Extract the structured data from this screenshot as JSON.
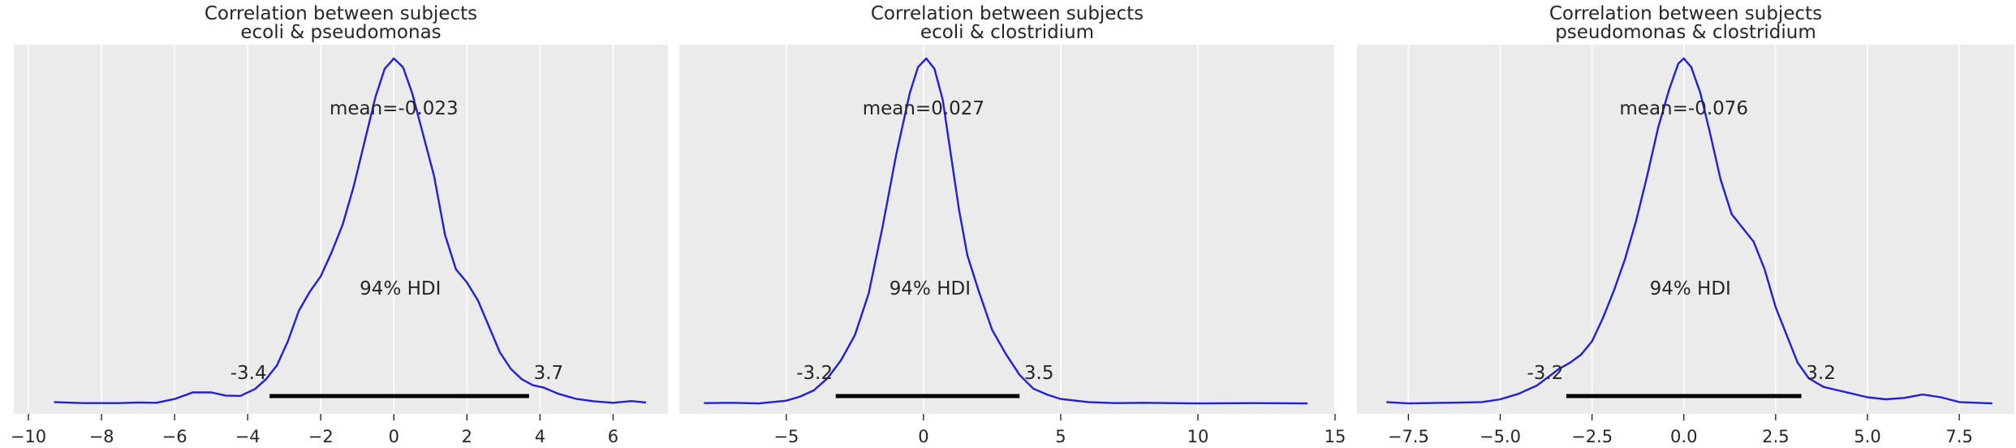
{
  "chart_data": [
    {
      "type": "line",
      "title": [
        "Correlation between subjects",
        "ecoli & pseudomonas"
      ],
      "xlim": [
        -10.4,
        7.5
      ],
      "xticks": [
        -10,
        -8,
        -6,
        -4,
        -2,
        0,
        2,
        4,
        6
      ],
      "xtick_labels": [
        "−10",
        "−8",
        "−6",
        "−4",
        "−2",
        "0",
        "2",
        "4",
        "6"
      ],
      "mean_label": "mean=-0.023",
      "hdi_label": "94% HDI",
      "hdi": [
        -3.4,
        3.7
      ],
      "hdi_low_label": "-3.4",
      "hdi_high_label": "3.7",
      "x": [
        -9.3,
        -8.5,
        -7.5,
        -7.0,
        -6.5,
        -6.0,
        -5.5,
        -5.0,
        -4.6,
        -4.2,
        -3.8,
        -3.5,
        -3.2,
        -2.9,
        -2.6,
        -2.3,
        -2.0,
        -1.7,
        -1.4,
        -1.1,
        -0.8,
        -0.5,
        -0.25,
        0.0,
        0.25,
        0.5,
        0.8,
        1.1,
        1.4,
        1.7,
        2.0,
        2.3,
        2.6,
        2.9,
        3.2,
        3.5,
        3.8,
        4.1,
        4.5,
        5.0,
        5.5,
        6.0,
        6.5,
        6.9
      ],
      "values": [
        0.006,
        0.003,
        0.003,
        0.005,
        0.004,
        0.015,
        0.034,
        0.034,
        0.025,
        0.024,
        0.044,
        0.072,
        0.112,
        0.182,
        0.27,
        0.325,
        0.37,
        0.44,
        0.52,
        0.63,
        0.76,
        0.89,
        0.97,
        1.0,
        0.975,
        0.9,
        0.78,
        0.66,
        0.49,
        0.39,
        0.352,
        0.3,
        0.225,
        0.15,
        0.102,
        0.072,
        0.055,
        0.048,
        0.03,
        0.015,
        0.008,
        0.004,
        0.009,
        0.005
      ]
    },
    {
      "type": "line",
      "title": [
        "Correlation between subjects",
        "ecoli & clostridium"
      ],
      "xlim": [
        -8.9,
        15.0
      ],
      "xticks": [
        -5,
        0,
        5,
        10,
        15
      ],
      "xtick_labels": [
        "−5",
        "0",
        "5",
        "10",
        "15"
      ],
      "mean_label": "mean=0.027",
      "hdi_label": "94% HDI",
      "hdi": [
        -3.2,
        3.5
      ],
      "hdi_low_label": "-3.2",
      "hdi_high_label": "3.5",
      "x": [
        -8.0,
        -7.0,
        -6.0,
        -5.0,
        -4.5,
        -4.0,
        -3.5,
        -3.0,
        -2.5,
        -2.0,
        -1.5,
        -1.0,
        -0.5,
        -0.2,
        0.1,
        0.4,
        0.7,
        1.0,
        1.3,
        1.6,
        2.0,
        2.5,
        3.0,
        3.5,
        4.0,
        4.5,
        5.0,
        6.0,
        7.0,
        8.0,
        10.0,
        12.0,
        14.0
      ],
      "values": [
        0.003,
        0.004,
        0.002,
        0.01,
        0.022,
        0.04,
        0.075,
        0.128,
        0.2,
        0.32,
        0.51,
        0.72,
        0.9,
        0.975,
        1.0,
        0.97,
        0.88,
        0.72,
        0.56,
        0.43,
        0.33,
        0.215,
        0.145,
        0.085,
        0.045,
        0.028,
        0.015,
        0.006,
        0.003,
        0.004,
        0.002,
        0.003,
        0.002
      ]
    },
    {
      "type": "line",
      "title": [
        "Correlation between subjects",
        "pseudomonas & clostridium"
      ],
      "xlim": [
        -8.9,
        9.0
      ],
      "xticks": [
        -7.5,
        -5.0,
        -2.5,
        0.0,
        2.5,
        5.0,
        7.5
      ],
      "xtick_labels": [
        "−7.5",
        "−5.0",
        "−2.5",
        "0.0",
        "2.5",
        "5.0",
        "7.5"
      ],
      "mean_label": "mean=-0.076",
      "hdi_label": "94% HDI",
      "hdi": [
        -3.2,
        3.2
      ],
      "hdi_low_label": "-3.2",
      "hdi_high_label": "3.2",
      "x": [
        -8.1,
        -7.5,
        -6.5,
        -6.0,
        -5.5,
        -5.0,
        -4.5,
        -4.0,
        -3.7,
        -3.4,
        -3.1,
        -2.8,
        -2.5,
        -2.2,
        -1.9,
        -1.6,
        -1.3,
        -1.0,
        -0.7,
        -0.4,
        -0.15,
        0.0,
        0.2,
        0.45,
        0.7,
        1.0,
        1.3,
        1.6,
        1.9,
        2.2,
        2.5,
        2.8,
        3.1,
        3.4,
        3.8,
        4.2,
        4.6,
        5.0,
        5.5,
        6.0,
        6.5,
        7.0,
        7.5,
        8.4
      ],
      "values": [
        0.006,
        0.002,
        0.004,
        0.005,
        0.006,
        0.014,
        0.03,
        0.054,
        0.078,
        0.102,
        0.12,
        0.143,
        0.182,
        0.25,
        0.33,
        0.42,
        0.53,
        0.66,
        0.8,
        0.91,
        0.985,
        1.0,
        0.975,
        0.9,
        0.79,
        0.65,
        0.55,
        0.51,
        0.47,
        0.39,
        0.28,
        0.2,
        0.12,
        0.075,
        0.05,
        0.04,
        0.03,
        0.02,
        0.014,
        0.018,
        0.028,
        0.02,
        0.006,
        0.002
      ]
    }
  ],
  "colors": {
    "curve": "#1f1fdc",
    "hdi": "#000000",
    "background": "#ebebeb",
    "grid": "#ffffff",
    "text": "#262626"
  }
}
